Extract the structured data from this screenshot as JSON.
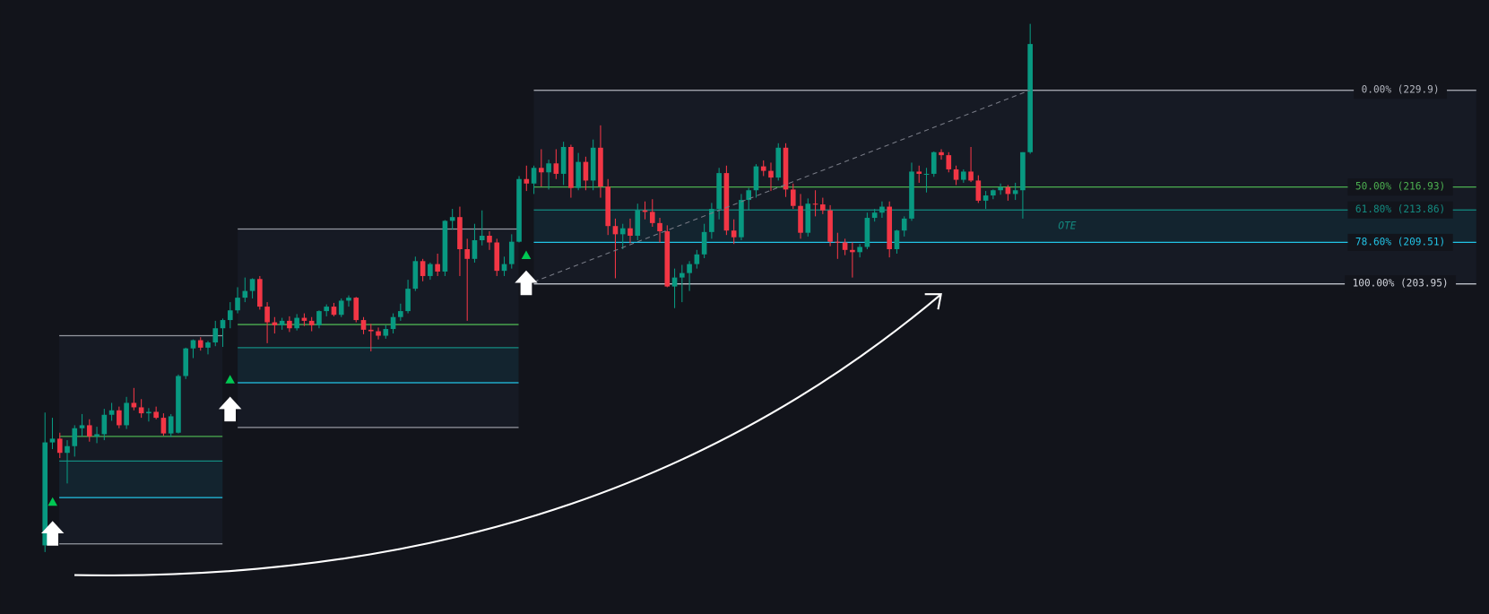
{
  "chart_data": {
    "type": "candlestick",
    "ylim": [
      159.7,
      242.0
    ],
    "up_color": "#089981",
    "down_color": "#f23645",
    "ohlc": [
      [
        168.9,
        186.7,
        168.0,
        182.7
      ],
      [
        182.7,
        186.0,
        181.8,
        183.2
      ],
      [
        183.2,
        184.0,
        180.6,
        181.3
      ],
      [
        181.3,
        183.0,
        177.2,
        182.2
      ],
      [
        182.2,
        185.0,
        180.8,
        184.6
      ],
      [
        184.6,
        186.5,
        183.5,
        185.0
      ],
      [
        185.0,
        185.8,
        182.8,
        183.5
      ],
      [
        183.5,
        184.8,
        182.6,
        183.8
      ],
      [
        183.8,
        187.2,
        183.0,
        186.4
      ],
      [
        186.4,
        188.0,
        185.6,
        187.0
      ],
      [
        187.0,
        187.5,
        184.6,
        185.0
      ],
      [
        185.0,
        188.8,
        184.5,
        188.0
      ],
      [
        188.0,
        190.0,
        187.0,
        187.4
      ],
      [
        187.4,
        188.5,
        186.0,
        186.6
      ],
      [
        186.6,
        187.3,
        185.5,
        186.8
      ],
      [
        186.8,
        187.5,
        185.8,
        186.0
      ],
      [
        186.0,
        186.6,
        183.6,
        183.9
      ],
      [
        183.9,
        186.5,
        183.4,
        186.2
      ],
      [
        184.0,
        191.8,
        183.9,
        191.6
      ],
      [
        191.6,
        195.4,
        191.2,
        195.3
      ],
      [
        195.3,
        196.5,
        194.0,
        196.4
      ],
      [
        196.4,
        196.8,
        195.0,
        195.4
      ],
      [
        195.4,
        196.3,
        194.5,
        196.1
      ],
      [
        196.1,
        199.0,
        195.6,
        198.0
      ],
      [
        198.0,
        199.3,
        195.5,
        199.1
      ],
      [
        199.1,
        201.5,
        198.0,
        200.4
      ],
      [
        200.4,
        203.5,
        200.0,
        202.1
      ],
      [
        202.1,
        204.8,
        201.5,
        203.0
      ],
      [
        203.0,
        204.7,
        202.0,
        204.6
      ],
      [
        204.6,
        205.0,
        200.5,
        200.9
      ],
      [
        200.9,
        201.5,
        196.0,
        198.8
      ],
      [
        198.8,
        199.5,
        197.3,
        198.4
      ],
      [
        198.4,
        199.4,
        197.8,
        199.0
      ],
      [
        199.0,
        199.6,
        197.5,
        198.0
      ],
      [
        198.0,
        199.9,
        197.7,
        199.4
      ],
      [
        199.4,
        200.0,
        198.3,
        199.0
      ],
      [
        199.0,
        199.5,
        197.6,
        198.4
      ],
      [
        198.4,
        200.4,
        198.0,
        200.3
      ],
      [
        200.3,
        201.2,
        199.6,
        200.9
      ],
      [
        200.9,
        201.4,
        199.6,
        199.8
      ],
      [
        199.8,
        202.0,
        199.5,
        201.7
      ],
      [
        201.7,
        202.4,
        200.9,
        202.1
      ],
      [
        202.1,
        202.2,
        198.8,
        199.1
      ],
      [
        199.1,
        199.5,
        197.2,
        197.8
      ],
      [
        197.8,
        198.6,
        194.9,
        197.6
      ],
      [
        197.6,
        198.1,
        196.5,
        197.0
      ],
      [
        197.0,
        198.4,
        196.6,
        197.9
      ],
      [
        197.9,
        200.0,
        197.3,
        199.5
      ],
      [
        199.5,
        201.3,
        199.0,
        200.3
      ],
      [
        200.3,
        204.5,
        200.0,
        203.3
      ],
      [
        203.3,
        207.6,
        203.0,
        207.0
      ],
      [
        207.0,
        207.3,
        204.3,
        205.0
      ],
      [
        205.0,
        206.8,
        204.5,
        206.6
      ],
      [
        206.6,
        208.0,
        205.0,
        205.6
      ],
      [
        205.6,
        212.5,
        205.0,
        212.4
      ],
      [
        212.4,
        214.0,
        211.2,
        212.9
      ],
      [
        212.9,
        214.3,
        205.0,
        208.6
      ],
      [
        208.6,
        210.0,
        199.0,
        207.3
      ],
      [
        207.3,
        212.0,
        206.8,
        209.8
      ],
      [
        209.8,
        213.8,
        209.1,
        210.4
      ],
      [
        210.4,
        211.0,
        208.5,
        209.5
      ],
      [
        209.5,
        210.0,
        205.0,
        205.7
      ],
      [
        205.7,
        207.6,
        205.0,
        206.6
      ],
      [
        206.6,
        210.6,
        206.0,
        209.6
      ],
      [
        209.6,
        218.4,
        209.5,
        218.0
      ],
      [
        218.0,
        219.8,
        216.4,
        217.4
      ],
      [
        217.4,
        219.8,
        216.0,
        219.5
      ],
      [
        219.5,
        222.0,
        217.0,
        218.9
      ],
      [
        218.9,
        220.6,
        216.6,
        220.1
      ],
      [
        220.1,
        222.0,
        218.0,
        218.7
      ],
      [
        218.7,
        223.0,
        217.2,
        222.3
      ],
      [
        222.3,
        222.6,
        215.5,
        216.8
      ],
      [
        216.8,
        221.5,
        216.5,
        220.3
      ],
      [
        220.3,
        221.0,
        216.5,
        217.8
      ],
      [
        217.8,
        223.3,
        216.5,
        222.2
      ],
      [
        222.2,
        225.2,
        215.5,
        217.0
      ],
      [
        217.0,
        218.0,
        210.5,
        211.7
      ],
      [
        211.7,
        212.7,
        204.7,
        210.6
      ],
      [
        210.6,
        212.0,
        208.6,
        211.4
      ],
      [
        211.4,
        212.7,
        209.4,
        210.4
      ],
      [
        210.4,
        214.7,
        209.8,
        213.8
      ],
      [
        213.8,
        215.0,
        212.6,
        213.6
      ],
      [
        213.6,
        215.3,
        211.6,
        212.1
      ],
      [
        212.1,
        212.8,
        209.5,
        211.0
      ],
      [
        211.0,
        211.8,
        203.5,
        203.6
      ],
      [
        203.6,
        206.0,
        200.7,
        204.8
      ],
      [
        204.8,
        206.5,
        201.5,
        205.4
      ],
      [
        205.4,
        207.0,
        203.0,
        206.6
      ],
      [
        206.6,
        208.5,
        206.0,
        207.9
      ],
      [
        207.9,
        212.0,
        207.4,
        210.9
      ],
      [
        210.9,
        214.8,
        210.0,
        214.0
      ],
      [
        214.0,
        219.5,
        212.6,
        218.8
      ],
      [
        218.8,
        219.8,
        210.5,
        211.1
      ],
      [
        211.1,
        212.6,
        209.3,
        210.2
      ],
      [
        210.2,
        216.0,
        209.8,
        215.2
      ],
      [
        215.2,
        216.8,
        213.8,
        216.5
      ],
      [
        216.5,
        220.0,
        215.5,
        219.7
      ],
      [
        219.7,
        220.5,
        218.4,
        219.1
      ],
      [
        219.1,
        220.2,
        216.4,
        218.2
      ],
      [
        218.2,
        222.8,
        217.8,
        222.2
      ],
      [
        222.2,
        222.8,
        215.6,
        216.6
      ],
      [
        216.6,
        217.4,
        214.0,
        214.4
      ],
      [
        214.4,
        216.0,
        210.0,
        210.8
      ],
      [
        210.8,
        215.4,
        210.3,
        214.7
      ],
      [
        214.7,
        216.5,
        213.0,
        214.6
      ],
      [
        214.6,
        215.5,
        213.3,
        213.8
      ],
      [
        213.8,
        214.5,
        209.0,
        209.6
      ],
      [
        209.6,
        210.8,
        207.3,
        209.5
      ],
      [
        209.5,
        210.0,
        207.8,
        208.5
      ],
      [
        208.5,
        209.5,
        204.8,
        208.2
      ],
      [
        208.2,
        209.3,
        207.5,
        208.9
      ],
      [
        208.9,
        213.5,
        208.6,
        212.8
      ],
      [
        212.8,
        214.0,
        212.3,
        213.5
      ],
      [
        213.5,
        215.0,
        212.8,
        214.3
      ],
      [
        214.3,
        215.0,
        207.5,
        208.6
      ],
      [
        208.6,
        211.2,
        208.0,
        211.1
      ],
      [
        211.1,
        213.0,
        210.3,
        212.7
      ],
      [
        212.7,
        220.2,
        212.4,
        219.0
      ],
      [
        219.0,
        219.8,
        217.5,
        218.7
      ],
      [
        218.7,
        219.5,
        216.2,
        218.7
      ],
      [
        218.7,
        221.7,
        218.3,
        221.6
      ],
      [
        221.6,
        222.0,
        220.6,
        221.2
      ],
      [
        221.2,
        221.6,
        218.9,
        219.3
      ],
      [
        219.3,
        219.8,
        217.2,
        217.9
      ],
      [
        217.9,
        219.3,
        217.5,
        219.0
      ],
      [
        219.0,
        222.3,
        217.6,
        217.8
      ],
      [
        217.8,
        218.5,
        214.8,
        215.1
      ],
      [
        215.1,
        216.4,
        214.0,
        215.8
      ],
      [
        215.8,
        216.6,
        215.3,
        216.5
      ],
      [
        216.5,
        217.4,
        215.9,
        216.9
      ],
      [
        216.9,
        217.2,
        215.1,
        216.0
      ],
      [
        216.0,
        217.5,
        215.2,
        216.5
      ],
      [
        216.5,
        221.6,
        212.7,
        221.6
      ],
      [
        221.6,
        238.8,
        221.4,
        236.1
      ]
    ],
    "fib_ranges": [
      {
        "levels": [
          {
            "value": 197.0,
            "color": "#9598a1"
          },
          {
            "value": 183.5,
            "color": "#4caf50"
          },
          {
            "value": 180.2,
            "color": "#138a80"
          },
          {
            "value": 175.3,
            "color": "#22c3e6"
          },
          {
            "value": 169.1,
            "color": "#9598a1"
          }
        ]
      },
      {
        "levels": [
          {
            "value": 211.3,
            "color": "#9598a1"
          },
          {
            "value": 198.5,
            "color": "#4caf50"
          },
          {
            "value": 195.4,
            "color": "#138a80"
          },
          {
            "value": 190.7,
            "color": "#22c3e6"
          },
          {
            "value": 184.7,
            "color": "#9598a1"
          }
        ]
      },
      {
        "zone_label": "OTE",
        "levels": [
          {
            "value": 229.9,
            "label": "0.00% (229.9)",
            "color": "#b2b5be"
          },
          {
            "value": 216.93,
            "label": "50.00% (216.93)",
            "color": "#4caf50"
          },
          {
            "value": 213.86,
            "label": "61.80% (213.86)",
            "color": "#138a80"
          },
          {
            "value": 209.51,
            "label": "78.60% (209.51)",
            "color": "#22c3e6"
          },
          {
            "value": 203.95,
            "label": "100.00% (203.95)",
            "color": "#d1d4dc"
          }
        ]
      }
    ]
  }
}
